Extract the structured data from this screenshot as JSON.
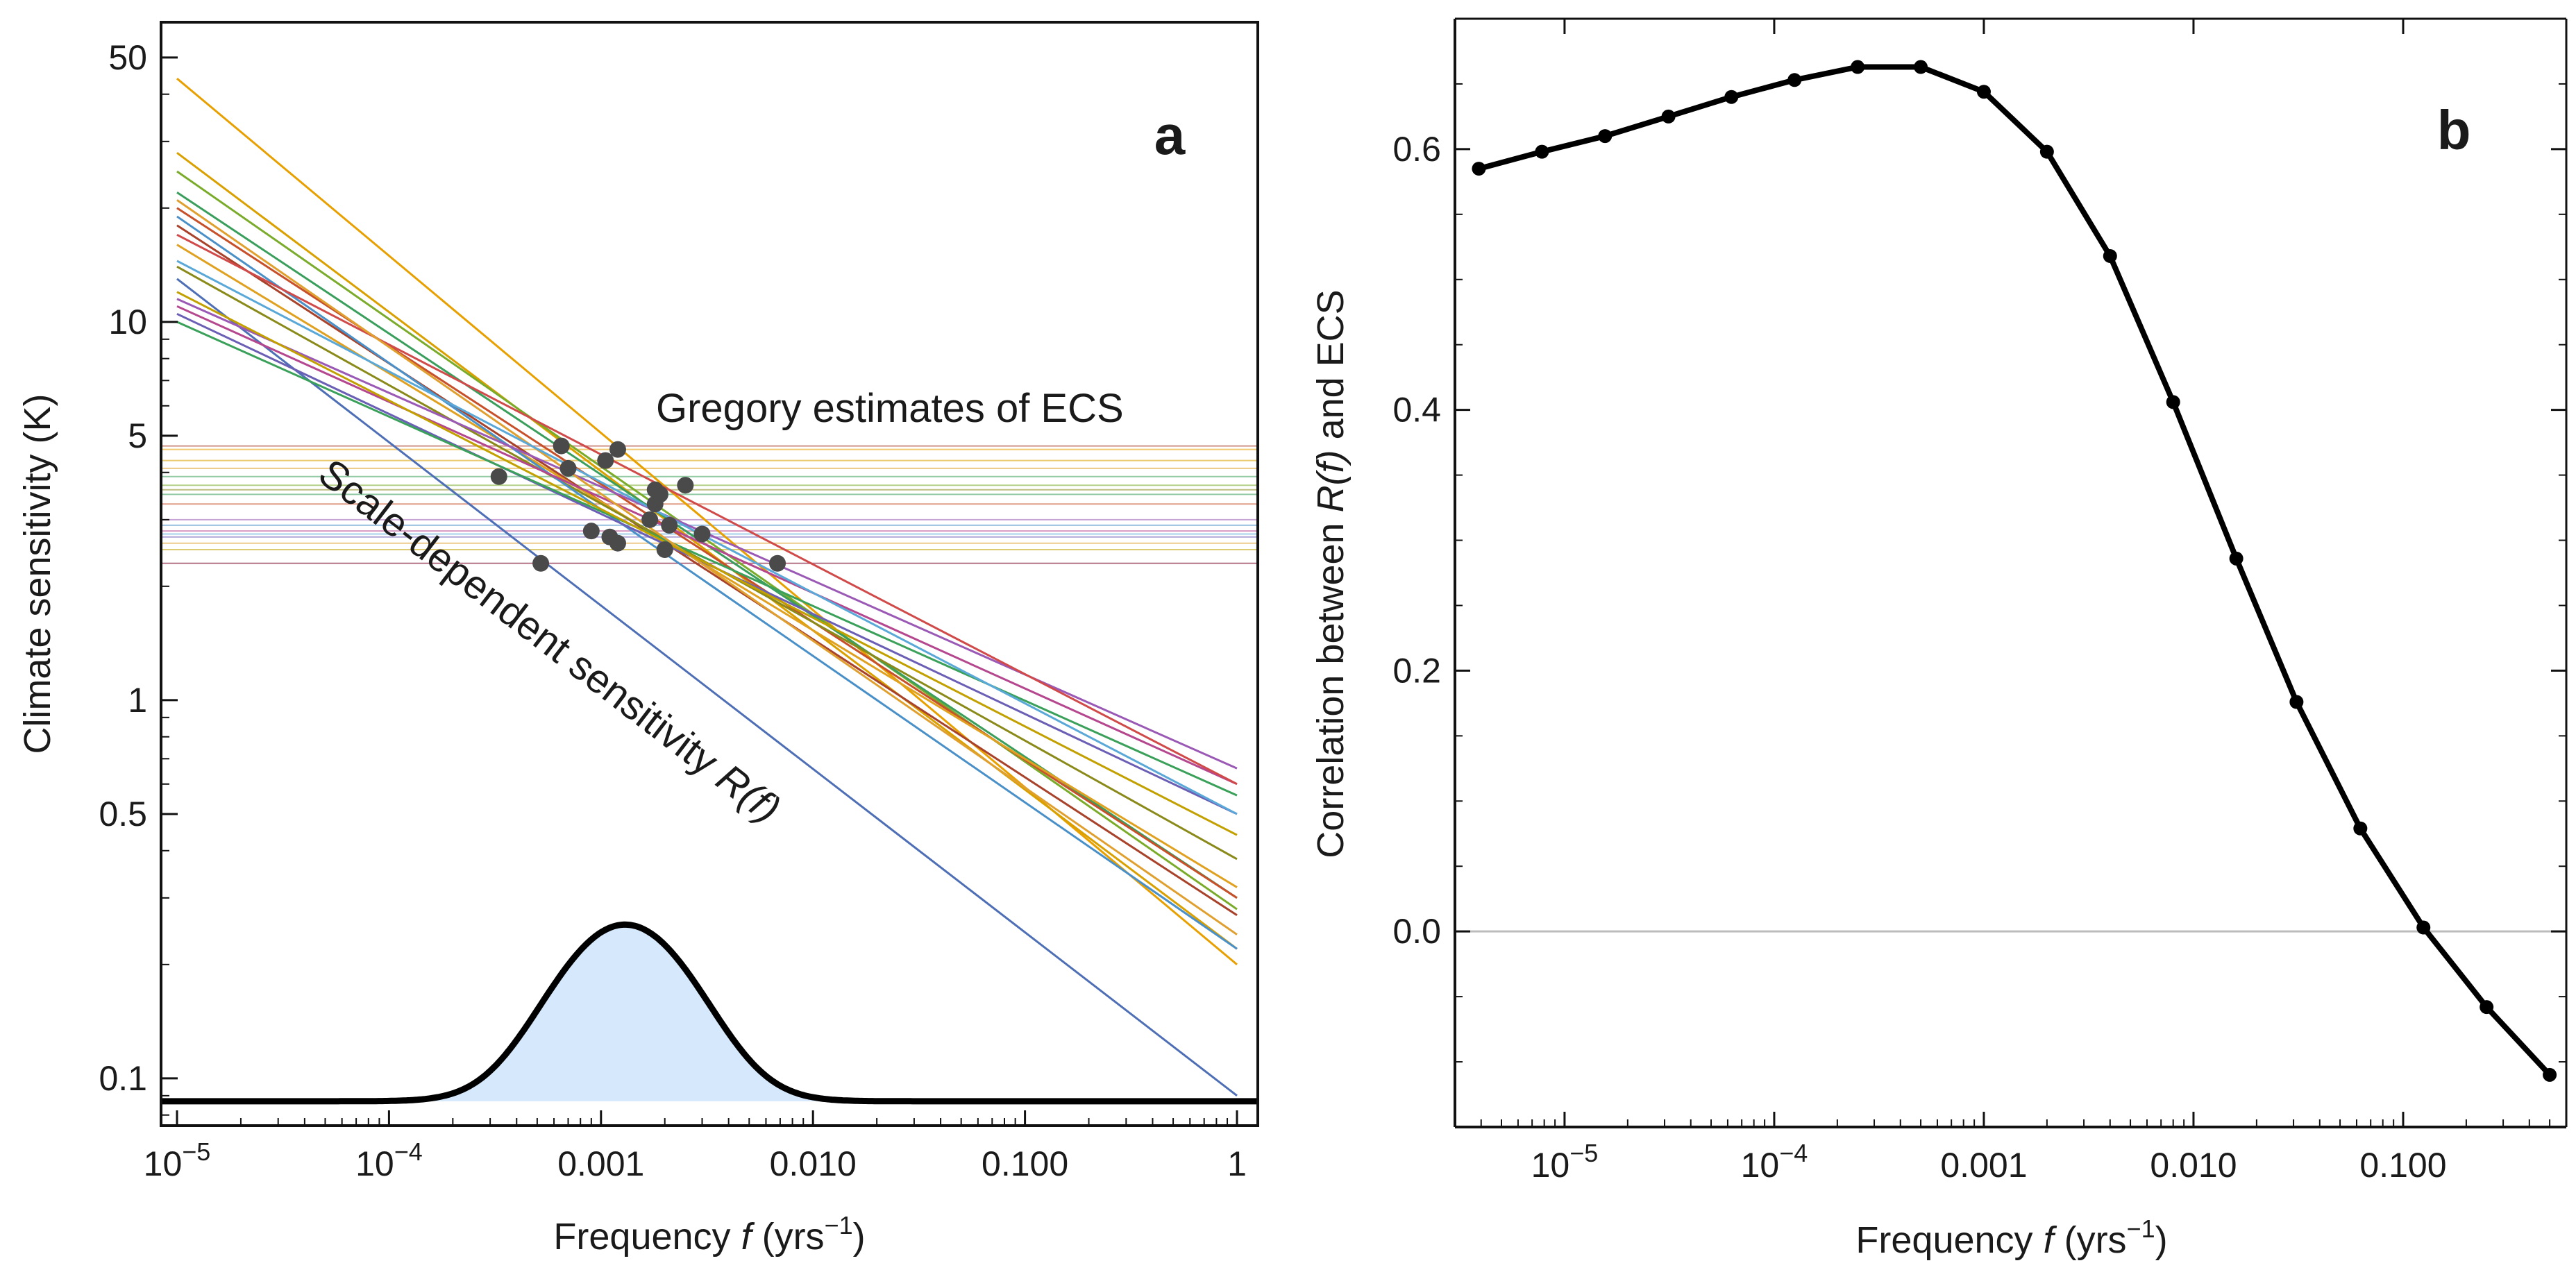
{
  "chart_data": [
    {
      "panel": "a",
      "type": "line",
      "xscale": "log",
      "yscale": "log",
      "xlim": [
        1e-05,
        1
      ],
      "ylim": [
        0.075,
        62
      ],
      "xlabel": {
        "pre": "Frequency ",
        "var": "f",
        "post": " (yrs",
        "sup": "−1",
        "close": ")"
      },
      "ylabel": "Climate sensitivity (K)",
      "xticks": [
        {
          "v": 1e-05,
          "base": "10",
          "sup": "−5"
        },
        {
          "v": 0.0001,
          "base": "10",
          "sup": "−4"
        },
        {
          "v": 0.001,
          "text": "0.001"
        },
        {
          "v": 0.01,
          "text": "0.010"
        },
        {
          "v": 0.1,
          "text": "0.100"
        },
        {
          "v": 1,
          "text": "1"
        }
      ],
      "yticks": [
        {
          "v": 0.1,
          "text": "0.1"
        },
        {
          "v": 0.5,
          "text": "0.5"
        },
        {
          "v": 1,
          "text": "1"
        },
        {
          "v": 5,
          "text": "5"
        },
        {
          "v": 10,
          "text": "10"
        },
        {
          "v": 50,
          "text": "50"
        }
      ],
      "annotations": {
        "gregory": "Gregory estimates of ECS",
        "scale_pre": "Scale-dependent sensitivity ",
        "scale_var": "R(f)"
      },
      "series": [
        {
          "color": "#e8a000",
          "y_start": 44,
          "y_end": 0.2,
          "ecs": 4.6,
          "f_point": 0.0012
        },
        {
          "color": "#d9a000",
          "y_start": 28,
          "y_end": 0.22,
          "ecs": 4.3,
          "f_point": 0.00105
        },
        {
          "color": "#7aab2a",
          "y_start": 25,
          "y_end": 0.28,
          "ecs": 3.7,
          "f_point": 0.0025
        },
        {
          "color": "#3a9e5c",
          "y_start": 22,
          "y_end": 0.3,
          "ecs": 3.5,
          "f_point": 0.0019
        },
        {
          "color": "#c7502a",
          "y_start": 20,
          "y_end": 0.3,
          "ecs": 3.3,
          "f_point": 0.0018
        },
        {
          "color": "#a8422a",
          "y_start": 18,
          "y_end": 0.27,
          "ecs": 4.7,
          "f_point": 0.00065
        },
        {
          "color": "#e0a020",
          "y_start": 16,
          "y_end": 0.32,
          "ecs": 4.1,
          "f_point": 0.0007
        },
        {
          "color": "#8a8a1a",
          "y_start": 14,
          "y_end": 0.38,
          "ecs": 3.6,
          "f_point": 0.0018
        },
        {
          "color": "#4a90c8",
          "y_start": 19,
          "y_end": 0.22,
          "ecs": 2.9,
          "f_point": 0.0021
        },
        {
          "color": "#4e6fb5",
          "y_start": 13,
          "y_end": 0.09,
          "ecs": 2.3,
          "f_point": 0.00052
        },
        {
          "color": "#9b59b6",
          "y_start": 11.5,
          "y_end": 0.66,
          "ecs": 3.0,
          "f_point": 0.0017
        },
        {
          "color": "#b5478f",
          "y_start": 11,
          "y_end": 0.6,
          "ecs": 2.8,
          "f_point": 0.0009
        },
        {
          "color": "#6b5fb5",
          "y_start": 10.5,
          "y_end": 0.5,
          "ecs": 2.7,
          "f_point": 0.0011
        },
        {
          "color": "#3aa05a",
          "y_start": 10,
          "y_end": 0.56,
          "ecs": 3.9,
          "f_point": 0.00033
        },
        {
          "color": "#d04a4a",
          "y_start": 17,
          "y_end": 0.6,
          "ecs": 2.3,
          "f_point": 0.0068
        },
        {
          "color": "#e0a030",
          "y_start": 21,
          "y_end": 0.24,
          "ecs": 2.6,
          "f_point": 0.0012
        },
        {
          "color": "#c2a000",
          "y_start": 12,
          "y_end": 0.44,
          "ecs": 2.5,
          "f_point": 0.002
        },
        {
          "color": "#5aa8d8",
          "y_start": 14.5,
          "y_end": 0.5,
          "ecs": 2.75,
          "f_point": 0.003
        }
      ],
      "distribution": {
        "baseline": 0.087,
        "peak": 0.255,
        "center_f": 0.0013,
        "width_decades": 0.3
      }
    },
    {
      "panel": "b",
      "type": "line",
      "xscale": "log",
      "xlim": [
        3e-06,
        0.6
      ],
      "ylim": [
        -0.15,
        0.7
      ],
      "xlabel": {
        "pre": "Frequency ",
        "var": "f",
        "post": " (yrs",
        "sup": "−1",
        "close": ")"
      },
      "ylabel": {
        "pre": "Correlation between ",
        "var": "R(f)",
        "post": " and ECS"
      },
      "xticks": [
        {
          "v": 1e-05,
          "base": "10",
          "sup": "−5"
        },
        {
          "v": 0.0001,
          "base": "10",
          "sup": "−4"
        },
        {
          "v": 0.001,
          "text": "0.001"
        },
        {
          "v": 0.01,
          "text": "0.010"
        },
        {
          "v": 0.1,
          "text": "0.100"
        }
      ],
      "yticks": [
        {
          "v": 0.0,
          "text": "0.0"
        },
        {
          "v": 0.2,
          "text": "0.2"
        },
        {
          "v": 0.4,
          "text": "0.4"
        },
        {
          "v": 0.6,
          "text": "0.6"
        }
      ],
      "x": [
        3.9e-06,
        7.8e-06,
        1.56e-05,
        3.13e-05,
        6.25e-05,
        0.000125,
        0.00025,
        0.0005,
        0.001,
        0.002,
        0.004,
        0.008,
        0.016,
        0.031,
        0.0625,
        0.125,
        0.25,
        0.5
      ],
      "y": [
        0.585,
        0.598,
        0.61,
        0.625,
        0.64,
        0.653,
        0.663,
        0.663,
        0.644,
        0.598,
        0.518,
        0.406,
        0.286,
        0.176,
        0.079,
        0.003,
        -0.058,
        -0.11
      ]
    }
  ]
}
